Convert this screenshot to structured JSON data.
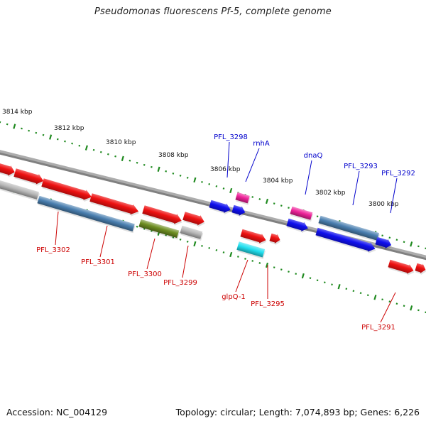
{
  "title": "Pseudomonas fluorescens Pf-5, complete genome",
  "accession": "Accession: NC_004129",
  "topology": "Topology: circular; Length: 7,074,893 bp; Genes: 6,226",
  "colors": {
    "forward_tick": "#1f8a1f",
    "backbone": "#808080",
    "top_label": "#0000cc",
    "bottom_label": "#cc0000",
    "red": "#ee1111",
    "blue": "#1010ee",
    "steel": "#4a7fb0",
    "magenta": "#ee2299",
    "olive": "#6e8e22",
    "grey": "#b8b8b8",
    "cyan": "#22e0f0"
  },
  "scale_ticks": [
    {
      "label": "3814 kbp"
    },
    {
      "label": "3812 kbp"
    },
    {
      "label": "3810 kbp"
    },
    {
      "label": "3808 kbp"
    },
    {
      "label": "3806 kbp"
    },
    {
      "label": "3804 kbp"
    },
    {
      "label": "3802 kbp"
    },
    {
      "label": "3800 kbp"
    }
  ],
  "top_labels": [
    {
      "name": "PFL_3298"
    },
    {
      "name": "rnhA"
    },
    {
      "name": "dnaQ"
    },
    {
      "name": "PFL_3293"
    },
    {
      "name": "PFL_3292"
    }
  ],
  "bottom_labels": [
    {
      "name": "PFL_3302"
    },
    {
      "name": "PFL_3301"
    },
    {
      "name": "PFL_3300"
    },
    {
      "name": "PFL_3299"
    },
    {
      "name": "glpQ-1"
    },
    {
      "name": "PFL_3295"
    },
    {
      "name": "PFL_3291"
    }
  ],
  "features": [
    {
      "kind": "red"
    },
    {
      "kind": "red"
    },
    {
      "kind": "red"
    },
    {
      "kind": "red"
    },
    {
      "kind": "red"
    },
    {
      "kind": "red"
    },
    {
      "kind": "grey"
    },
    {
      "kind": "steel"
    },
    {
      "kind": "olive"
    },
    {
      "kind": "grey"
    },
    {
      "kind": "blue"
    },
    {
      "kind": "blue"
    },
    {
      "kind": "magenta"
    },
    {
      "kind": "red"
    },
    {
      "kind": "cyan"
    },
    {
      "kind": "red"
    },
    {
      "kind": "magenta"
    },
    {
      "kind": "blue"
    },
    {
      "kind": "steel"
    },
    {
      "kind": "blue"
    },
    {
      "kind": "blue"
    },
    {
      "kind": "red"
    },
    {
      "kind": "red"
    }
  ]
}
